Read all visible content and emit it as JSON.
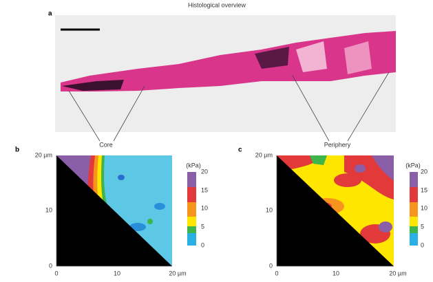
{
  "figure_title": "Histological overview",
  "panel_a": {
    "label": "a",
    "core_label": "Core",
    "periphery_label": "Periphery"
  },
  "panel_b": {
    "label": "b",
    "y_ticks": [
      "20 µm",
      "10",
      "0"
    ],
    "x_ticks": [
      "0",
      "10",
      "20 µm"
    ],
    "colorbar_unit": "(kPa)",
    "colorbar_ticks": [
      "20",
      "15",
      "10",
      "5",
      "0"
    ]
  },
  "panel_c": {
    "label": "c",
    "y_ticks": [
      "20 µm",
      "10",
      "0"
    ],
    "x_ticks": [
      "0",
      "10",
      "20 µm"
    ],
    "colorbar_unit": "(kPa)",
    "colorbar_ticks": [
      "20",
      "15",
      "10",
      "5",
      "0"
    ]
  }
}
